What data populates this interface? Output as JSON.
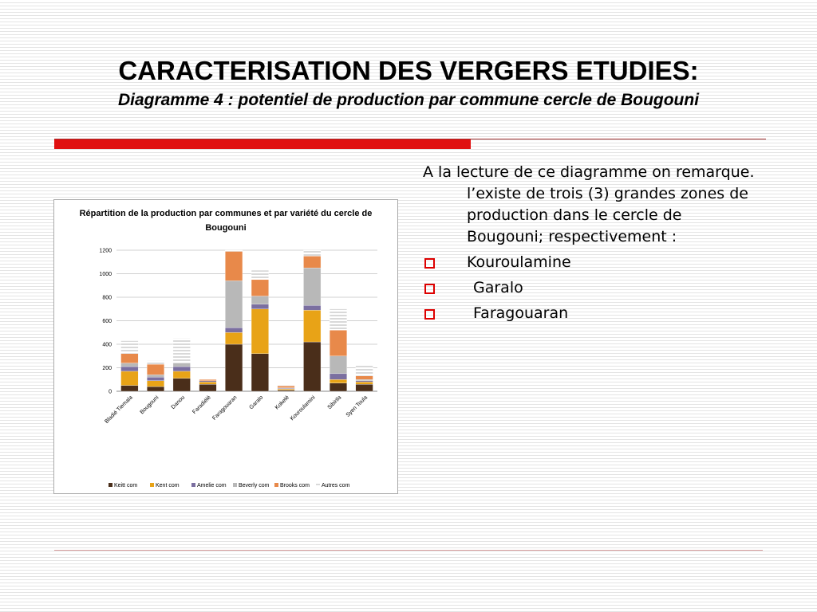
{
  "title": "CARACTERISATION  DES VERGERS ETUDIES:",
  "subtitle": "Diagramme 4 : potentiel de production par commune cercle de Bougouni",
  "body": {
    "intro": "A la lecture de ce diagramme on remarque. l’existe de trois (3) grandes zones de production dans le cercle de Bougouni; respectivement :",
    "bullets": [
      "Kouroulamine",
      "Garalo",
      "Faragouaran"
    ]
  },
  "chart_data": {
    "type": "stacked_bar",
    "title": "Répartition de la production par communes et par variété du cercle de Bougouni",
    "categories": [
      "Bladié Tiemala",
      "Bougouni",
      "Danou",
      "Faradiélé",
      "Faragouaran",
      "Garalo",
      "Kokelé",
      "Kouroulamini",
      "Sibirila",
      "Syen Toula"
    ],
    "series": [
      {
        "name": "Keitt com",
        "color": "#4a2e1a",
        "values": [
          50,
          40,
          110,
          60,
          400,
          320,
          10,
          420,
          70,
          60
        ]
      },
      {
        "name": "Kent com",
        "color": "#e8a317",
        "values": [
          120,
          50,
          60,
          20,
          100,
          380,
          10,
          270,
          30,
          20
        ]
      },
      {
        "name": "Amelie com",
        "color": "#7b6fa0",
        "values": [
          40,
          30,
          40,
          10,
          40,
          40,
          5,
          40,
          50,
          10
        ]
      },
      {
        "name": "Beverly com",
        "color": "#b8b8b8",
        "values": [
          30,
          20,
          30,
          0,
          400,
          70,
          5,
          320,
          150,
          10
        ]
      },
      {
        "name": "Brooks com",
        "color": "#e8894a",
        "values": [
          80,
          90,
          0,
          10,
          250,
          140,
          15,
          100,
          220,
          30
        ]
      },
      {
        "name": "Autres com",
        "color": "#d9d9d9",
        "values": [
          110,
          30,
          210,
          0,
          10,
          80,
          5,
          50,
          180,
          100
        ]
      }
    ],
    "ylim": [
      0,
      1200
    ],
    "yticks": [
      0,
      200,
      400,
      600,
      800,
      1000,
      1200
    ],
    "grid": true,
    "legend": "bottom"
  }
}
